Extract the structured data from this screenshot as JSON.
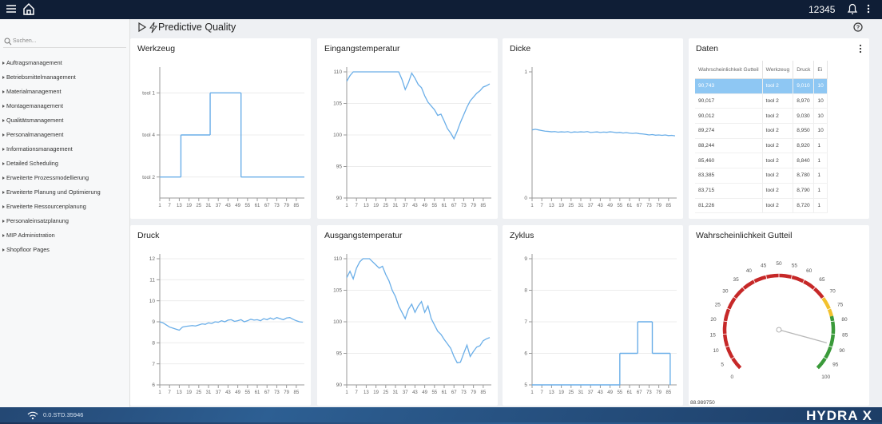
{
  "app": {
    "user": "12345",
    "page_title": "Predictive Quality",
    "version": "0.0.STD.35946",
    "brand": "HYDRA X"
  },
  "sidebar": {
    "search_placeholder": "Suchen...",
    "items": [
      "Auftragsmanagement",
      "Betriebsmittelmanagement",
      "Materialmanagement",
      "Montagemanagement",
      "Qualitätsmanagement",
      "Personalmanagement",
      "Informationsmanagement",
      "Detailed Scheduling",
      "Erweiterte Prozessmodellierung",
      "Erweiterte Planung und Optimierung",
      "Erweiterte Ressourcenplanung",
      "Personaleinsatzplanung",
      "MIP Administration",
      "Shopfloor Pages"
    ]
  },
  "chart_data": [
    {
      "type": "step",
      "title": "Werkzeug",
      "x": [
        1,
        14,
        32,
        51,
        90
      ],
      "values": [
        "tool 2",
        "tool 4",
        "tool 1",
        "tool 2",
        "tool 2"
      ],
      "ycategories": [
        "tool 2",
        "tool 4",
        "tool 1"
      ],
      "color": "#6aaee8",
      "xlim": [
        1,
        90
      ],
      "xticks": [
        1,
        7,
        13,
        19,
        25,
        31,
        37,
        43,
        49,
        55,
        61,
        67,
        73,
        79,
        85
      ],
      "grid": true
    },
    {
      "type": "line",
      "title": "Eingangstemperatur",
      "x": [
        1,
        3,
        5,
        7,
        9,
        11,
        13,
        15,
        17,
        19,
        21,
        23,
        25,
        27,
        29,
        31,
        33,
        35,
        37,
        39,
        41,
        43,
        45,
        47,
        49,
        51,
        53,
        55,
        57,
        59,
        61,
        63,
        65,
        67,
        69,
        71,
        73,
        75,
        77,
        79,
        81,
        83,
        85,
        87,
        89
      ],
      "values": [
        108.5,
        109.4,
        110,
        110,
        110,
        110,
        110,
        110,
        110,
        110,
        110,
        110,
        110,
        110,
        110,
        110,
        110,
        108.8,
        107.2,
        108.3,
        109.8,
        109,
        108,
        107.5,
        106.2,
        105.2,
        104.6,
        104,
        103.1,
        103.3,
        102.2,
        101,
        100.3,
        99.4,
        100.6,
        102,
        103.2,
        104.4,
        105.4,
        106,
        106.6,
        107,
        107.6,
        107.8,
        108.1
      ],
      "color": "#6aaee8",
      "xlim": [
        1,
        90
      ],
      "ylim": [
        90,
        110
      ],
      "xticks": [
        1,
        7,
        13,
        19,
        25,
        31,
        37,
        43,
        49,
        55,
        61,
        67,
        73,
        79,
        85
      ],
      "yticks": [
        90,
        95,
        100,
        105,
        110
      ],
      "grid": true
    },
    {
      "type": "line",
      "title": "Dicke",
      "x": [
        1,
        3,
        5,
        7,
        9,
        11,
        13,
        15,
        17,
        19,
        21,
        23,
        25,
        27,
        29,
        31,
        33,
        35,
        37,
        39,
        41,
        43,
        45,
        47,
        49,
        51,
        53,
        55,
        57,
        59,
        61,
        63,
        65,
        67,
        69,
        71,
        73,
        75,
        77,
        79,
        81,
        83,
        85,
        87,
        89
      ],
      "values": [
        0.54,
        0.545,
        0.54,
        0.535,
        0.53,
        0.528,
        0.525,
        0.527,
        0.522,
        0.525,
        0.523,
        0.526,
        0.52,
        0.524,
        0.522,
        0.525,
        0.523,
        0.527,
        0.52,
        0.522,
        0.524,
        0.52,
        0.523,
        0.521,
        0.525,
        0.522,
        0.518,
        0.52,
        0.515,
        0.518,
        0.514,
        0.512,
        0.515,
        0.51,
        0.508,
        0.505,
        0.5,
        0.503,
        0.498,
        0.5,
        0.497,
        0.5,
        0.495,
        0.497,
        0.493
      ],
      "color": "#6aaee8",
      "xlim": [
        1,
        90
      ],
      "ylim": [
        0,
        1
      ],
      "xticks": [
        1,
        7,
        13,
        19,
        25,
        31,
        37,
        43,
        49,
        55,
        61,
        67,
        73,
        79,
        85
      ],
      "yticks": [
        0,
        1
      ],
      "grid": false
    },
    {
      "type": "line",
      "title": "Druck",
      "x": [
        1,
        3,
        5,
        7,
        9,
        11,
        13,
        15,
        17,
        19,
        21,
        23,
        25,
        27,
        29,
        31,
        33,
        35,
        37,
        39,
        41,
        43,
        45,
        47,
        49,
        51,
        53,
        55,
        57,
        59,
        61,
        63,
        65,
        67,
        69,
        71,
        73,
        75,
        77,
        79,
        81,
        83,
        85,
        87,
        89
      ],
      "values": [
        9.0,
        8.95,
        8.85,
        8.75,
        8.7,
        8.65,
        8.6,
        8.75,
        8.78,
        8.8,
        8.82,
        8.8,
        8.85,
        8.9,
        8.88,
        8.95,
        8.92,
        9.0,
        8.98,
        9.05,
        9.0,
        9.08,
        9.1,
        9.02,
        9.05,
        9.1,
        9.0,
        9.05,
        9.12,
        9.08,
        9.1,
        9.05,
        9.15,
        9.1,
        9.18,
        9.12,
        9.2,
        9.15,
        9.1,
        9.18,
        9.2,
        9.12,
        9.05,
        9.0,
        8.98
      ],
      "color": "#6aaee8",
      "xlim": [
        1,
        90
      ],
      "ylim": [
        6,
        12
      ],
      "xticks": [
        1,
        7,
        13,
        19,
        25,
        31,
        37,
        43,
        49,
        55,
        61,
        67,
        73,
        79,
        85
      ],
      "yticks": [
        6,
        7,
        8,
        9,
        10,
        11,
        12
      ],
      "grid": true
    },
    {
      "type": "line",
      "title": "Ausgangstemperatur",
      "x": [
        1,
        3,
        5,
        7,
        9,
        11,
        13,
        15,
        17,
        19,
        21,
        23,
        25,
        27,
        29,
        31,
        33,
        35,
        37,
        39,
        41,
        43,
        45,
        47,
        49,
        51,
        53,
        55,
        57,
        59,
        61,
        63,
        65,
        67,
        69,
        71,
        73,
        75,
        77,
        79,
        81,
        83,
        85,
        87,
        89
      ],
      "values": [
        107,
        108,
        106.8,
        108.5,
        109.5,
        110,
        110,
        110,
        109.5,
        109,
        108.5,
        108.8,
        107.5,
        106.5,
        105,
        104,
        102.5,
        101.5,
        100.5,
        102,
        102.8,
        101.5,
        102.5,
        103.2,
        101.5,
        102.5,
        100.5,
        99.5,
        98.5,
        98,
        97.2,
        96.5,
        95.8,
        94.5,
        93.5,
        93.6,
        95,
        96.3,
        94.5,
        95.3,
        96,
        96.2,
        97,
        97.3,
        97.5
      ],
      "color": "#6aaee8",
      "xlim": [
        1,
        90
      ],
      "ylim": [
        90,
        110
      ],
      "xticks": [
        1,
        7,
        13,
        19,
        25,
        31,
        37,
        43,
        49,
        55,
        61,
        67,
        73,
        79,
        85
      ],
      "yticks": [
        90,
        95,
        100,
        105,
        110
      ],
      "grid": true
    },
    {
      "type": "step",
      "title": "Zyklus",
      "x": [
        1,
        55,
        66,
        75,
        86
      ],
      "values": [
        5,
        6,
        7,
        6,
        5
      ],
      "color": "#6aaee8",
      "xlim": [
        1,
        90
      ],
      "ylim": [
        5,
        9
      ],
      "xticks": [
        1,
        7,
        13,
        19,
        25,
        31,
        37,
        43,
        49,
        55,
        61,
        67,
        73,
        79,
        85
      ],
      "yticks": [
        5,
        6,
        7,
        8,
        9
      ],
      "grid": true
    },
    {
      "type": "gauge",
      "title": "Wahrscheinlichkeit Gutteil",
      "value": 88.98975,
      "value_label": "88.989750",
      "ylim": [
        0,
        100
      ],
      "yticks": [
        0,
        5,
        10,
        15,
        20,
        25,
        30,
        35,
        40,
        45,
        50,
        55,
        60,
        65,
        70,
        75,
        80,
        85,
        90,
        95,
        100
      ],
      "bands": [
        {
          "from": 0,
          "to": 70,
          "color": "#c62828"
        },
        {
          "from": 70,
          "to": 78,
          "color": "#f2c12e"
        },
        {
          "from": 78,
          "to": 100,
          "color": "#3a9a3a"
        }
      ],
      "needle_color": "#b8b8b8"
    }
  ],
  "table": {
    "title": "Daten",
    "columns": [
      "Wahrscheinlichkeit Gutteil",
      "Werkzeug",
      "Druck",
      "Ei"
    ],
    "selected_row": 0,
    "rows": [
      [
        "90,743",
        "tool 2",
        "9,010",
        "10"
      ],
      [
        "90,017",
        "tool 2",
        "8,970",
        "10"
      ],
      [
        "90,012",
        "tool 2",
        "9,030",
        "10"
      ],
      [
        "89,274",
        "tool 2",
        "8,950",
        "10"
      ],
      [
        "88,244",
        "tool 2",
        "8,920",
        "1"
      ],
      [
        "85,460",
        "tool 2",
        "8,840",
        "1"
      ],
      [
        "83,385",
        "tool 2",
        "8,780",
        "1"
      ],
      [
        "83,715",
        "tool 2",
        "8,790",
        "1"
      ],
      [
        "81,226",
        "tool 2",
        "8,720",
        "1"
      ]
    ]
  }
}
